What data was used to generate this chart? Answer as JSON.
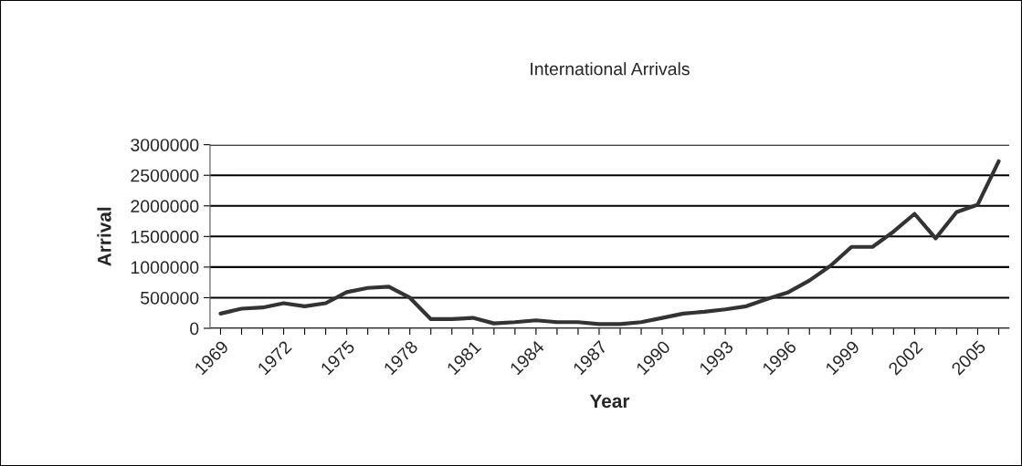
{
  "chart_data": {
    "type": "line",
    "title": "International Arrivals",
    "xlabel": "Year",
    "ylabel": "Arrival",
    "categories": [
      "1969",
      null,
      null,
      "1972",
      null,
      null,
      "1975",
      null,
      null,
      "1978",
      null,
      null,
      "1981",
      null,
      null,
      "1984",
      null,
      null,
      "1987",
      null,
      null,
      "1990",
      null,
      null,
      "1993",
      null,
      null,
      "1996",
      null,
      null,
      "1999",
      null,
      null,
      "2002",
      null,
      null,
      "2005",
      null
    ],
    "series": [
      {
        "color": "#333333",
        "values": [
          240000,
          320000,
          340000,
          410000,
          360000,
          410000,
          590000,
          660000,
          680000,
          500000,
          150000,
          150000,
          170000,
          80000,
          100000,
          130000,
          100000,
          100000,
          70000,
          70000,
          100000,
          170000,
          240000,
          270000,
          310000,
          360000,
          480000,
          590000,
          780000,
          1020000,
          1330000,
          1330000,
          1580000,
          1870000,
          1470000,
          1900000,
          2020000,
          2730000
        ]
      }
    ],
    "ylim": [
      0,
      3000000
    ],
    "yticks": [
      0,
      500000,
      1000000,
      1500000,
      2000000,
      2500000,
      3000000
    ],
    "grid": "y",
    "marker": "none",
    "line_style": "solid"
  }
}
